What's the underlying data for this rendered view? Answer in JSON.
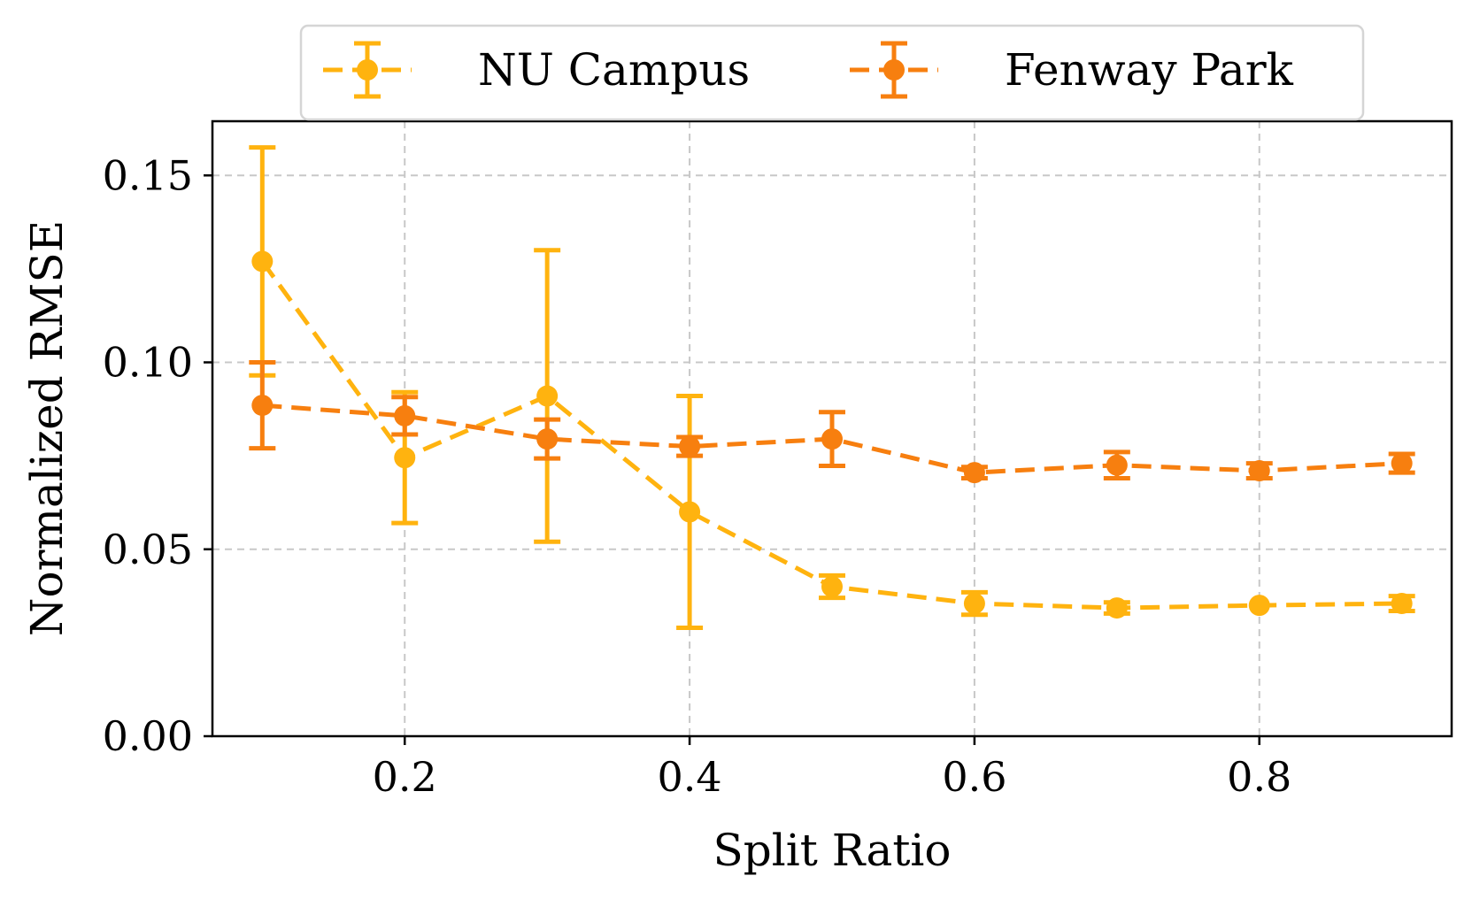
{
  "chart_data": {
    "type": "line",
    "title": "",
    "xlabel": "Split Ratio",
    "ylabel": "Normalized RMSE",
    "xlim": [
      0.065,
      0.935
    ],
    "ylim": [
      0.0,
      0.1645
    ],
    "xticks": [
      0.2,
      0.4,
      0.6,
      0.8
    ],
    "xtick_labels": [
      "0.2",
      "0.4",
      "0.6",
      "0.8"
    ],
    "yticks": [
      0.0,
      0.05,
      0.1,
      0.15
    ],
    "ytick_labels": [
      "0.00",
      "0.05",
      "0.10",
      "0.15"
    ],
    "grid": true,
    "legend_position": "top-center-outside",
    "series": [
      {
        "name": "NU Campus",
        "color": "#FFB30F",
        "x": [
          0.1,
          0.2,
          0.3,
          0.4,
          0.5,
          0.6,
          0.7,
          0.8,
          0.9
        ],
        "y": [
          0.127,
          0.0745,
          0.091,
          0.06,
          0.04,
          0.0355,
          0.0343,
          0.035,
          0.0355
        ],
        "err": [
          0.0305,
          0.0175,
          0.039,
          0.031,
          0.003,
          0.003,
          0.0015,
          null,
          0.002
        ]
      },
      {
        "name": "Fenway Park",
        "color": "#F77F0F",
        "x": [
          0.1,
          0.2,
          0.3,
          0.4,
          0.5,
          0.6,
          0.7,
          0.8,
          0.9
        ],
        "y": [
          0.0885,
          0.0857,
          0.0795,
          0.0775,
          0.0795,
          0.0705,
          0.0725,
          0.071,
          0.073
        ],
        "err": [
          0.0115,
          0.005,
          0.0052,
          0.0025,
          0.0072,
          0.0015,
          0.0035,
          0.002,
          0.0025
        ]
      }
    ]
  }
}
